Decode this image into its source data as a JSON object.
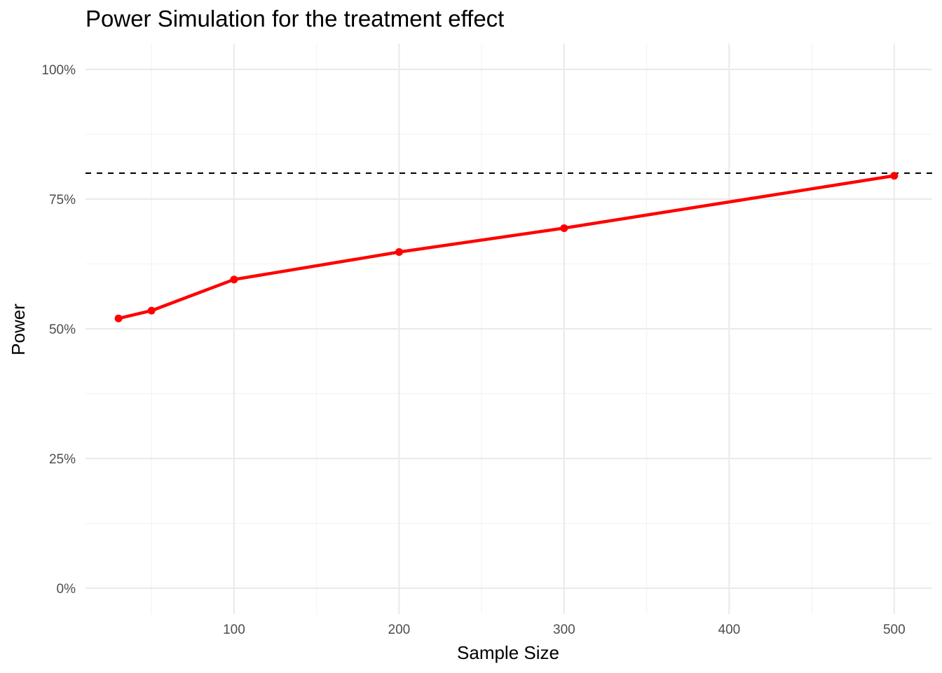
{
  "chart_data": {
    "type": "line",
    "title": "Power Simulation for the treatment effect",
    "xlabel": "Sample Size",
    "ylabel": "Power",
    "x": [
      30,
      50,
      100,
      200,
      300,
      500
    ],
    "series": [
      {
        "values": [
          0.52,
          0.535,
          0.595,
          0.648,
          0.694,
          0.795
        ]
      }
    ],
    "reference_line": {
      "y": 0.8,
      "style": "dashed"
    },
    "xlim": [
      10,
      523
    ],
    "ylim": [
      -0.05,
      1.05
    ],
    "x_ticks": [
      100,
      200,
      300,
      400,
      500
    ],
    "x_tick_labels": [
      "100",
      "200",
      "300",
      "400",
      "500"
    ],
    "y_ticks": [
      0,
      0.25,
      0.5,
      0.75,
      1.0
    ],
    "y_tick_labels": [
      "0%",
      "25%",
      "50%",
      "75%",
      "100%"
    ],
    "grid": true,
    "legend": "none",
    "colors": {
      "series": "#ff0000",
      "reference": "#000000",
      "grid_major": "#ebebeb",
      "grid_minor": "#f2f2f2"
    }
  }
}
